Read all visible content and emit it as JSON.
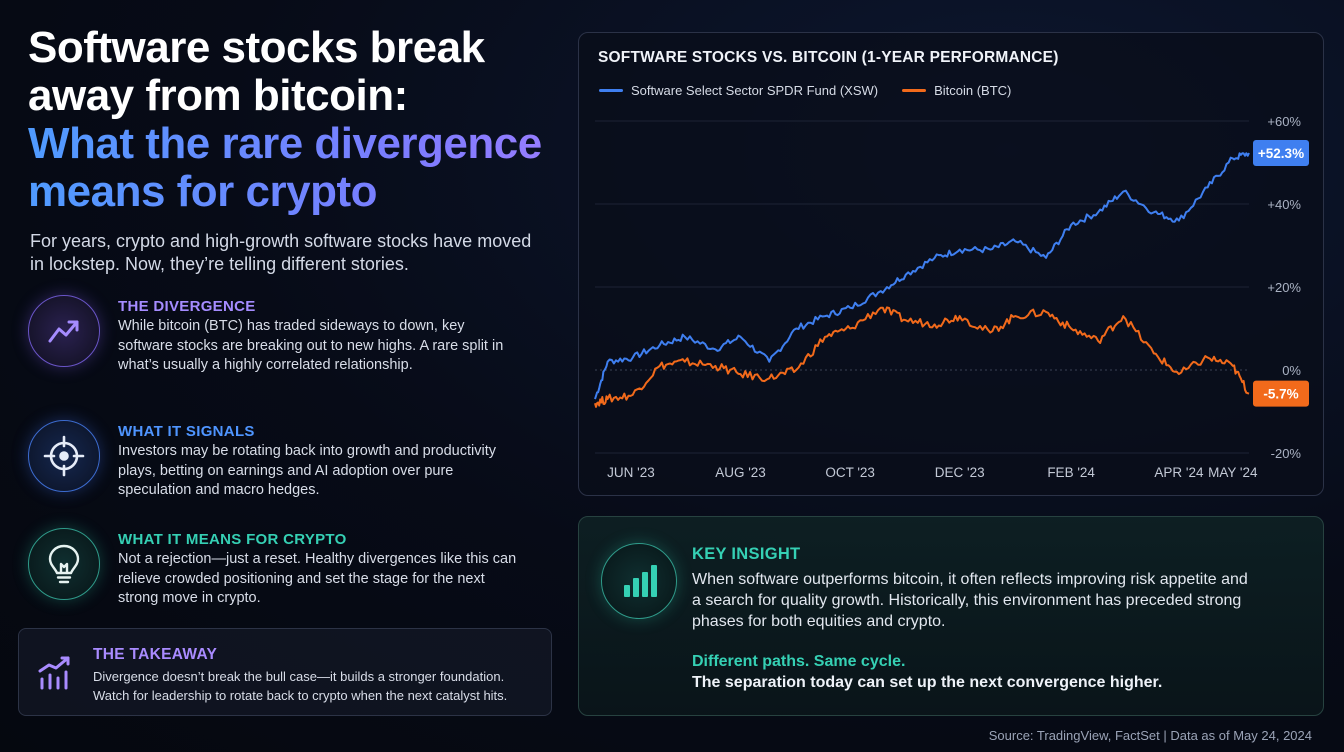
{
  "headline": {
    "line1": "Software stocks break",
    "line2": "away from bitcoin:",
    "line3": "What the rare divergence",
    "line4": "means for crypto"
  },
  "intro": "For years, crypto and high-growth software stocks have moved in lockstep. Now, they’re telling different stories.",
  "features": [
    {
      "icon": "trending-up-icon",
      "title": "THE DIVERGENCE",
      "color": "#a58cff",
      "body": "While bitcoin (BTC) has traded sideways to down, key software stocks are breaking out to new highs. A rare split in what’s usually a highly correlated relationship."
    },
    {
      "icon": "crosshair-target-icon",
      "title": "WHAT IT SIGNALS",
      "color": "#4f95ff",
      "body": "Investors may be rotating back into growth and productivity plays, betting on earnings and AI adoption over pure speculation and macro hedges."
    },
    {
      "icon": "lightbulb-icon",
      "title": "WHAT IT MEANS FOR CRYPTO",
      "color": "#35d0b4",
      "body": "Not a rejection—just a reset. Healthy divergences like this can relieve crowded positioning and set the stage for the next strong move in crypto."
    }
  ],
  "takeaway": {
    "icon": "bar-chart-trend-icon",
    "title": "THE TAKEAWAY",
    "body": "Divergence doesn’t break the bull case—it builds a stronger foundation. Watch for leadership to rotate back to crypto when the next catalyst hits."
  },
  "insight": {
    "icon": "bar-chart-icon",
    "title": "KEY INSIGHT",
    "body": "When software outperforms bitcoin, it often reflects improving risk appetite and a search for quality growth. Historically, this environment has preceded strong phases for both equities and crypto.",
    "sub_title": "Different paths. Same cycle.",
    "sub_body": "The separation today can set up the next convergence higher."
  },
  "source": "Source: TradingView, FactSet  |  Data as of May 24, 2024",
  "chart_data": {
    "type": "line",
    "title": "SOFTWARE STOCKS VS. BITCOIN (1-YEAR PERFORMANCE)",
    "x_tick_labels": [
      "JUN '23",
      "AUG '23",
      "OCT '23",
      "DEC '23",
      "FEB '24",
      "APR '24",
      "MAY '24"
    ],
    "x_months": [
      "2023-06",
      "2023-08",
      "2023-10",
      "2023-12",
      "2024-02",
      "2024-04",
      "2024-05"
    ],
    "y_tick_labels": [
      "+60%",
      "+40%",
      "+20%",
      "0%",
      "-20%"
    ],
    "y_ticks": [
      60,
      40,
      20,
      0,
      -20
    ],
    "ylim": [
      -20,
      60
    ],
    "grid": true,
    "legend_position": "top-left",
    "series": [
      {
        "name": "Software Select Sector SPDR Fund (XSW)",
        "color": "#3f7ff0",
        "end_label": "+52.3%",
        "x": [
          "2023-05-26",
          "2023-06-02",
          "2023-06-16",
          "2023-07-01",
          "2023-07-15",
          "2023-08-01",
          "2023-08-15",
          "2023-08-31",
          "2023-09-15",
          "2023-10-01",
          "2023-10-15",
          "2023-11-01",
          "2023-11-15",
          "2023-12-01",
          "2023-12-15",
          "2024-01-01",
          "2024-01-15",
          "2024-02-01",
          "2024-02-15",
          "2024-03-01",
          "2024-03-15",
          "2024-04-01",
          "2024-04-15",
          "2024-05-01",
          "2024-05-15",
          "2024-05-24"
        ],
        "values": [
          -7,
          2,
          3,
          6,
          8,
          5,
          8,
          2,
          10,
          13,
          15,
          19,
          23,
          27,
          29,
          29,
          31,
          27,
          35,
          38,
          43,
          38,
          36,
          44,
          51,
          52.3
        ]
      },
      {
        "name": "Bitcoin (BTC)",
        "color": "#f26a1b",
        "end_label": "-5.7%",
        "x": [
          "2023-05-26",
          "2023-06-02",
          "2023-06-16",
          "2023-07-01",
          "2023-07-15",
          "2023-08-01",
          "2023-08-15",
          "2023-08-31",
          "2023-09-15",
          "2023-10-01",
          "2023-10-15",
          "2023-11-01",
          "2023-11-15",
          "2023-12-01",
          "2023-12-15",
          "2024-01-01",
          "2024-01-15",
          "2024-02-01",
          "2024-02-15",
          "2024-03-01",
          "2024-03-15",
          "2024-04-01",
          "2024-04-15",
          "2024-05-01",
          "2024-05-15",
          "2024-05-24"
        ],
        "values": [
          -8,
          -7,
          -6,
          1,
          2,
          1,
          -1,
          -2,
          0,
          8,
          10,
          15,
          12,
          11,
          13,
          9,
          13,
          14,
          10,
          7,
          13,
          4,
          -1,
          3,
          1,
          -5.7
        ]
      }
    ]
  }
}
